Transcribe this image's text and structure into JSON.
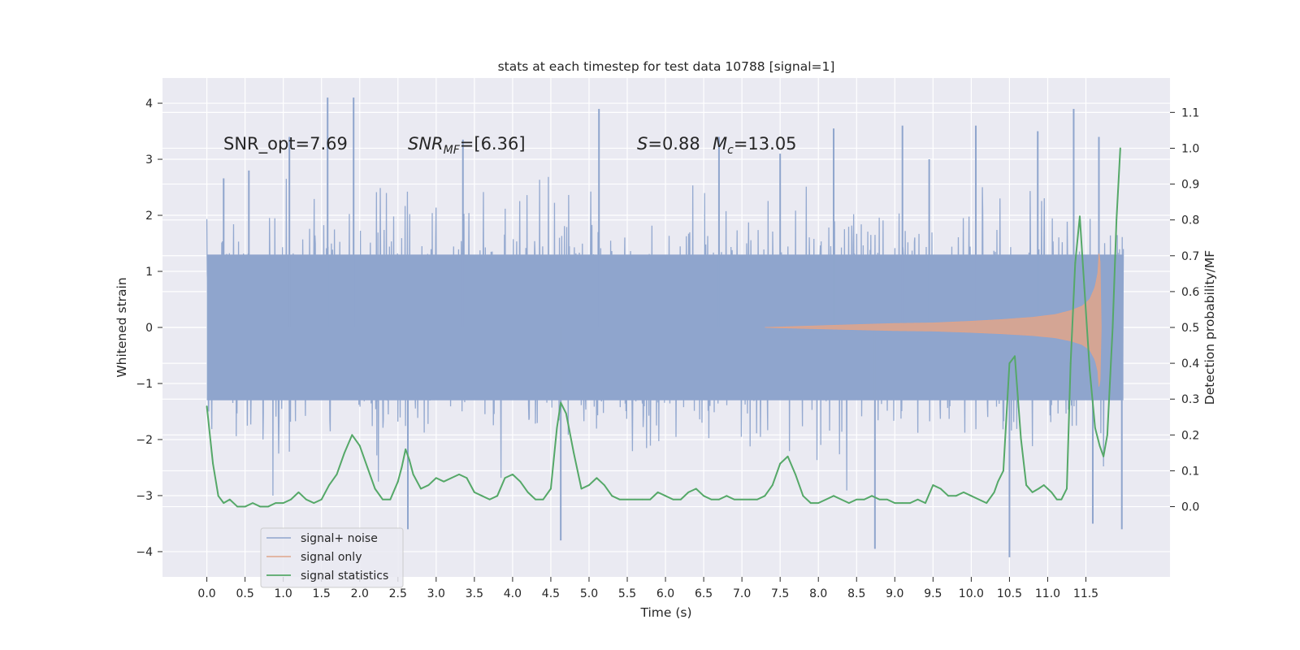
{
  "chart_data": {
    "type": "line",
    "title": "stats at each timestep for test data 10788 [signal=1]",
    "xlabel": "Time (s)",
    "ylabel": "Whitened strain",
    "ylabel_right": "Detection probability/MF",
    "xlim": [
      -0.58,
      12.6
    ],
    "ylim": [
      -4.45,
      4.45
    ],
    "ylim_right": [
      -0.196,
      1.196
    ],
    "x_ticks": [
      "0.0",
      "0.5",
      "1.0",
      "1.5",
      "2.0",
      "2.5",
      "3.0",
      "3.5",
      "4.0",
      "4.5",
      "5.0",
      "5.5",
      "6.0",
      "6.5",
      "7.0",
      "7.5",
      "8.0",
      "8.5",
      "9.0",
      "9.5",
      "10.0",
      "10.5",
      "11.0",
      "11.5"
    ],
    "y_ticks": [
      4,
      3,
      2,
      1,
      0,
      -1,
      -2,
      -3,
      -4
    ],
    "y_tick_labels": [
      "4",
      "3",
      "2",
      "1",
      "0",
      "−1",
      "−2",
      "−3",
      "−4"
    ],
    "y_ticks_right": [
      "1.1",
      "1.0",
      "0.9",
      "0.8",
      "0.7",
      "0.6",
      "0.5",
      "0.4",
      "0.3",
      "0.2",
      "0.1",
      "0.0"
    ],
    "grid": true,
    "annotations": {
      "snr_opt": "SNR_opt=7.69",
      "snr_mf_main": "SNR",
      "snr_mf_sub": "MF",
      "snr_mf_val": "=[6.36]",
      "s_sym": "S",
      "s_val": "=0.88",
      "mc_main": "M",
      "mc_sub": "c",
      "mc_val": "=13.05"
    },
    "legend": {
      "placement": "lower-left",
      "entries": [
        "signal+ noise",
        "signal only",
        "signal statistics"
      ]
    },
    "colors": {
      "noise": "#8fa5cd",
      "signal": "#e0a48a",
      "stats": "#55a868",
      "background": "#eaeaf2",
      "grid": "#ffffff"
    },
    "series": [
      {
        "name": "signal+ noise",
        "axis": "left",
        "x_range": [
          0.0,
          11.99
        ],
        "band_envelope": 1.3,
        "typical_peak": 2.3,
        "peak_spikes": {
          "x": [
            0.22,
            0.55,
            1.08,
            1.58,
            1.92,
            2.63,
            3.35,
            4.63,
            5.13,
            6.7,
            7.5,
            8.2,
            8.74,
            9.1,
            9.45,
            10.06,
            10.5,
            10.87,
            11.34,
            11.59,
            11.67,
            11.97
          ],
          "y": [
            2.66,
            2.8,
            3.4,
            4.1,
            4.1,
            -3.6,
            3.35,
            -3.8,
            3.9,
            3.4,
            3.1,
            3.55,
            -3.95,
            3.6,
            3.0,
            3.6,
            -4.1,
            3.5,
            3.9,
            -3.5,
            3.4,
            -3.6
          ]
        }
      },
      {
        "name": "signal only",
        "axis": "left",
        "x": [
          7.3,
          7.8,
          8.5,
          9.0,
          9.5,
          10.0,
          10.4,
          10.8,
          11.1,
          11.3,
          11.45,
          11.55,
          11.62,
          11.66,
          11.68,
          11.7
        ],
        "amplitude": [
          0.0,
          0.02,
          0.05,
          0.07,
          0.08,
          0.11,
          0.14,
          0.18,
          0.23,
          0.3,
          0.38,
          0.5,
          0.72,
          1.0,
          1.6,
          0.0
        ]
      },
      {
        "name": "signal statistics",
        "axis": "right",
        "x": [
          0.0,
          0.08,
          0.15,
          0.22,
          0.3,
          0.4,
          0.5,
          0.6,
          0.7,
          0.8,
          0.9,
          1.0,
          1.1,
          1.2,
          1.25,
          1.3,
          1.4,
          1.5,
          1.6,
          1.7,
          1.8,
          1.9,
          2.0,
          2.1,
          2.2,
          2.3,
          2.4,
          2.5,
          2.55,
          2.6,
          2.65,
          2.7,
          2.8,
          2.9,
          3.0,
          3.1,
          3.2,
          3.3,
          3.4,
          3.5,
          3.6,
          3.7,
          3.8,
          3.9,
          4.0,
          4.1,
          4.2,
          4.3,
          4.4,
          4.5,
          4.58,
          4.63,
          4.7,
          4.8,
          4.9,
          5.0,
          5.1,
          5.2,
          5.3,
          5.4,
          5.5,
          5.6,
          5.7,
          5.8,
          5.9,
          6.0,
          6.1,
          6.2,
          6.3,
          6.4,
          6.5,
          6.6,
          6.7,
          6.8,
          6.9,
          7.0,
          7.1,
          7.2,
          7.3,
          7.4,
          7.5,
          7.6,
          7.7,
          7.8,
          7.9,
          8.0,
          8.1,
          8.2,
          8.3,
          8.4,
          8.5,
          8.6,
          8.7,
          8.8,
          8.9,
          9.0,
          9.1,
          9.2,
          9.3,
          9.4,
          9.5,
          9.6,
          9.7,
          9.8,
          9.9,
          10.0,
          10.1,
          10.2,
          10.3,
          10.35,
          10.42,
          10.5,
          10.57,
          10.65,
          10.72,
          10.8,
          10.88,
          10.95,
          11.05,
          11.12,
          11.18,
          11.25,
          11.3,
          11.36,
          11.42,
          11.48,
          11.55,
          11.62,
          11.68,
          11.73,
          11.78,
          11.85,
          11.9,
          11.95
        ],
        "y": [
          0.28,
          0.12,
          0.03,
          0.01,
          0.02,
          0.0,
          0.0,
          0.01,
          0.0,
          0.0,
          0.01,
          0.01,
          0.02,
          0.04,
          0.03,
          0.02,
          0.01,
          0.02,
          0.06,
          0.09,
          0.15,
          0.2,
          0.17,
          0.11,
          0.05,
          0.02,
          0.02,
          0.07,
          0.11,
          0.16,
          0.13,
          0.09,
          0.05,
          0.06,
          0.08,
          0.07,
          0.08,
          0.09,
          0.08,
          0.04,
          0.03,
          0.02,
          0.03,
          0.08,
          0.09,
          0.07,
          0.04,
          0.02,
          0.02,
          0.05,
          0.22,
          0.29,
          0.26,
          0.15,
          0.05,
          0.06,
          0.08,
          0.06,
          0.03,
          0.02,
          0.02,
          0.02,
          0.02,
          0.02,
          0.04,
          0.03,
          0.02,
          0.02,
          0.04,
          0.05,
          0.03,
          0.02,
          0.02,
          0.03,
          0.02,
          0.02,
          0.02,
          0.02,
          0.03,
          0.06,
          0.12,
          0.14,
          0.09,
          0.03,
          0.01,
          0.01,
          0.02,
          0.03,
          0.02,
          0.01,
          0.02,
          0.02,
          0.03,
          0.02,
          0.02,
          0.01,
          0.01,
          0.01,
          0.02,
          0.01,
          0.06,
          0.05,
          0.03,
          0.03,
          0.04,
          0.03,
          0.02,
          0.01,
          0.04,
          0.07,
          0.1,
          0.4,
          0.42,
          0.19,
          0.06,
          0.04,
          0.05,
          0.06,
          0.04,
          0.02,
          0.02,
          0.05,
          0.4,
          0.68,
          0.81,
          0.61,
          0.38,
          0.22,
          0.17,
          0.14,
          0.2,
          0.5,
          0.8,
          1.0
        ]
      }
    ]
  }
}
